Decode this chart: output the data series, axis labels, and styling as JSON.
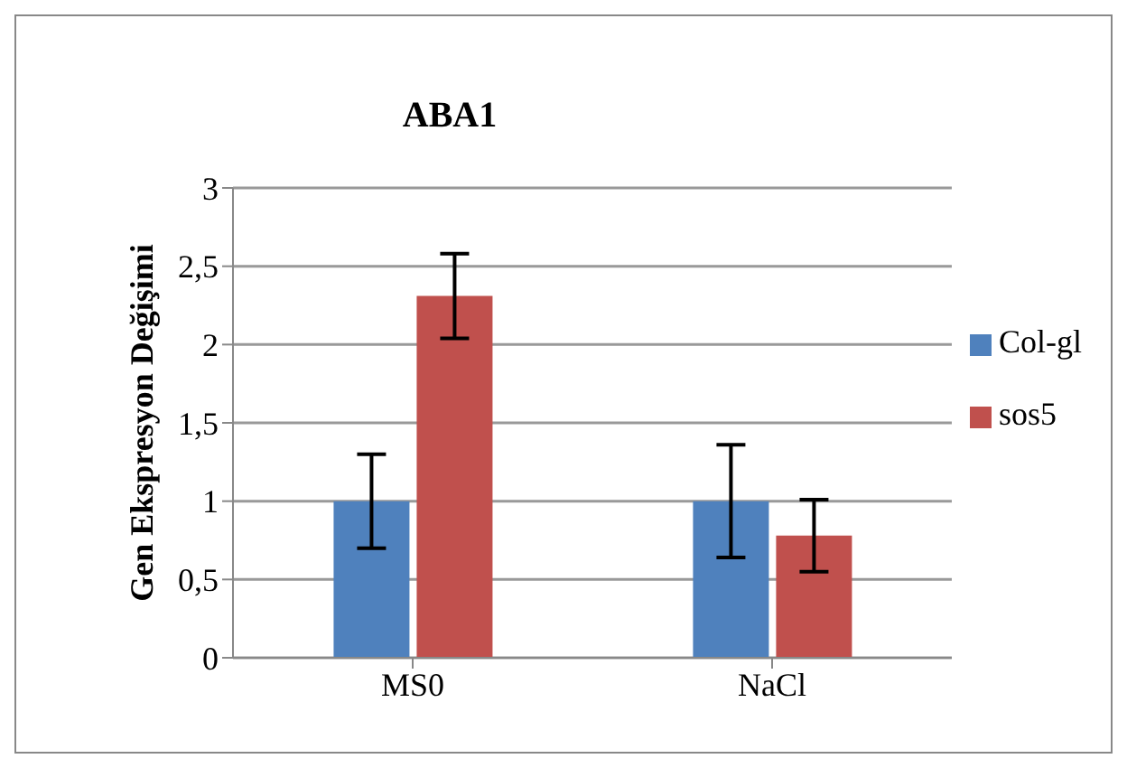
{
  "chart_data": {
    "type": "bar",
    "title": "ABA1",
    "ylabel": "Gen Ekspresyon Değişimi",
    "categories": [
      "MS0",
      "NaCl"
    ],
    "series": [
      {
        "name": "Col-gl",
        "color": "#4f81bd",
        "values": [
          1,
          1
        ],
        "errors": [
          0.3,
          0.36
        ]
      },
      {
        "name": "sos5",
        "color": "#c0504d",
        "values": [
          2.31,
          0.78
        ],
        "errors": [
          0.27,
          0.23
        ]
      }
    ],
    "ylim": [
      0,
      3
    ],
    "yticks": [
      0,
      {
        "value": 0.5,
        "label": "0,5"
      },
      1,
      {
        "value": 1.5,
        "label": "1,5"
      },
      2,
      {
        "value": 2.5,
        "label": "2,5"
      },
      3
    ],
    "grid": "y",
    "legend": "right"
  }
}
